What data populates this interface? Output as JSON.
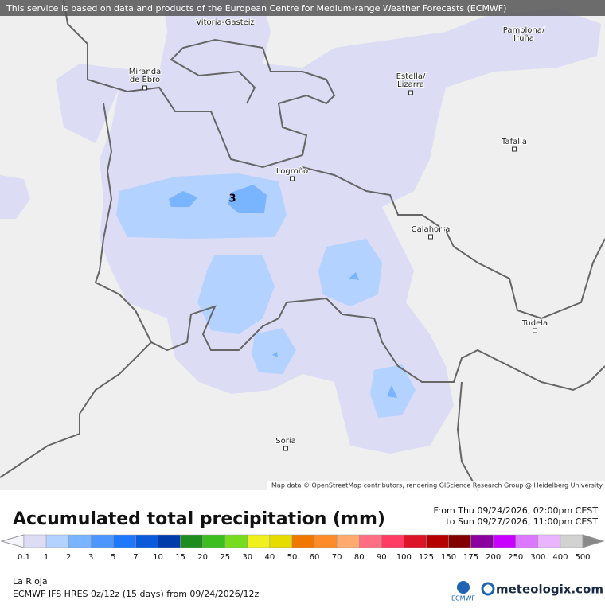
{
  "header": {
    "notice": "This service is based on data and products of the European Centre for Medium-range Weather Forecasts (ECMWF)"
  },
  "map": {
    "places": [
      "Vitoria-Gasteiz",
      "Pamplona/ Iruña",
      "Miranda de Ebro",
      "Estella/ Lizarra",
      "Tafalla",
      "Logroño",
      "Calahorra",
      "Tudela",
      "Soria"
    ],
    "value_label": "3",
    "attribution": "Map data © OpenStreetMap contributors, rendering GIScience Research Group @ Heidelberg University"
  },
  "legend": {
    "title": "Accumulated total precipitation (mm)",
    "from": "From Thu 09/24/2026, 02:00pm CEST",
    "to": "to Sun 09/27/2026, 11:00pm CEST",
    "labels": [
      0.1,
      1,
      2,
      3,
      5,
      7,
      10,
      15,
      20,
      25,
      30,
      40,
      50,
      60,
      70,
      80,
      90,
      100,
      125,
      150,
      175,
      200,
      250,
      300,
      400,
      500
    ],
    "colors": [
      "#dcdcf5",
      "#b4d2ff",
      "#78b4ff",
      "#4b96ff",
      "#1e78ff",
      "#0a5adc",
      "#003caa",
      "#1e8c1e",
      "#3cbe1e",
      "#78dc1e",
      "#f0f01e",
      "#e6dc00",
      "#f07800",
      "#ff8c28",
      "#ffaa6e",
      "#ff6e82",
      "#ff3c64",
      "#dc1428",
      "#b40000",
      "#820000",
      "#8c00a0",
      "#c800ff",
      "#dc78ff",
      "#ebb4ff",
      "#d2d2d2"
    ]
  },
  "footer": {
    "region": "La Rioja",
    "model": "ECMWF IFS HRES 0z/12z (15 days) from 09/24/2026/12z",
    "logo_left": "ECMWF",
    "logo_right": "meteologix.com"
  }
}
